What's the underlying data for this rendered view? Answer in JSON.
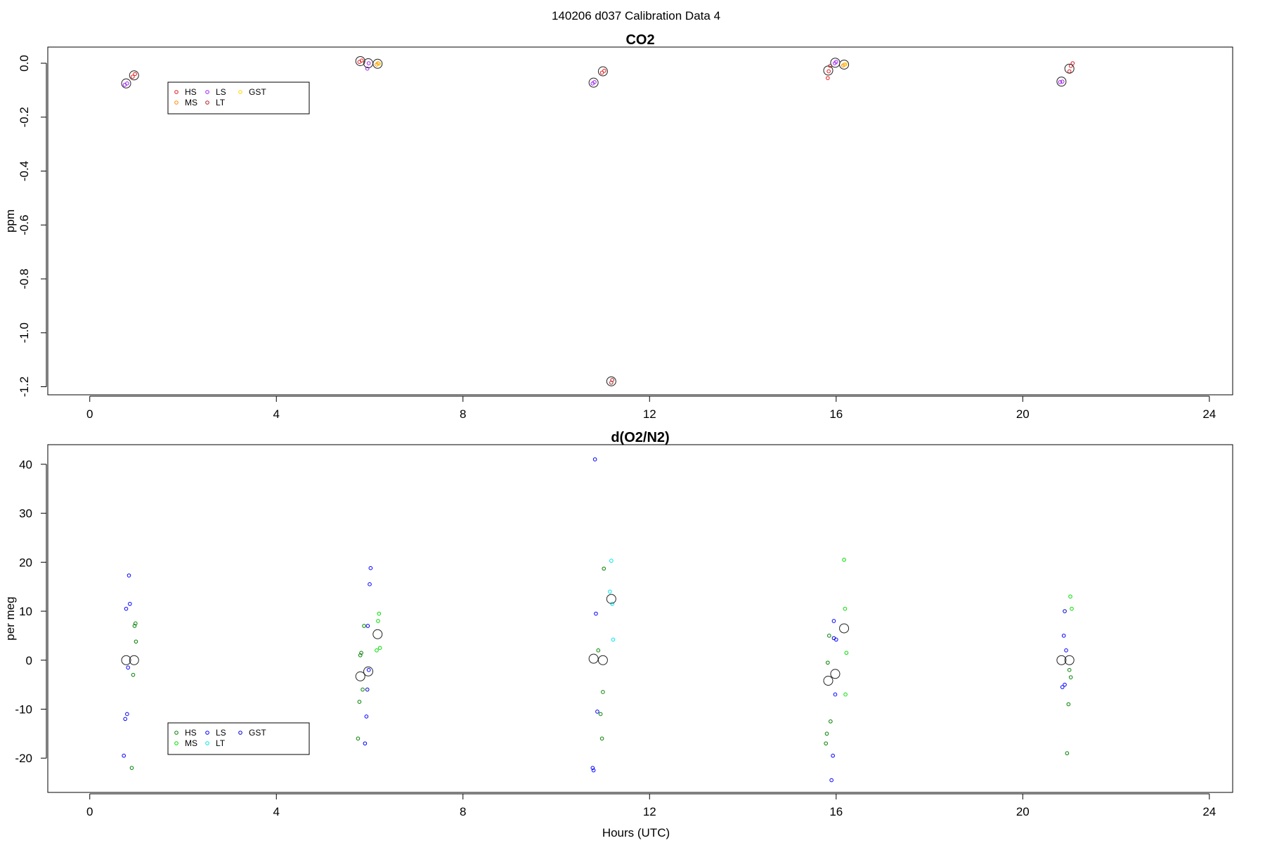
{
  "figure": {
    "title": "140206   d037   Calibration Data 4",
    "xlabel": "Hours (UTC)"
  },
  "chart_data": [
    {
      "type": "scatter",
      "title": "CO2",
      "xlabel": "",
      "ylabel": "ppm",
      "xlim": [
        -0.9,
        24.5
      ],
      "ylim": [
        -1.23,
        0.06
      ],
      "xticks": [
        0,
        4,
        8,
        12,
        16,
        20,
        24
      ],
      "yticks": [
        0.0,
        -0.2,
        -0.4,
        -0.6,
        -0.8,
        -1.0,
        -1.2
      ],
      "ytick_labels": [
        "0.0",
        "-0.2",
        "-0.4",
        "-0.6",
        "-0.8",
        "-1.0",
        "-1.2"
      ],
      "rotate_ytick_labels": true,
      "grid": false,
      "legend_position": "top-left",
      "legend_columns": 3,
      "mean_marker": "open black circle",
      "series": [
        {
          "name": "HS",
          "color": "#e31a1c",
          "x": [
            0.92,
            0.97,
            5.78,
            5.83,
            10.98,
            11.03,
            15.82,
            15.84,
            15.87,
            21.0,
            21.03,
            21.07
          ],
          "y": [
            -0.05,
            -0.04,
            0.005,
            0.01,
            -0.035,
            -0.028,
            -0.055,
            -0.03,
            -0.01,
            -0.03,
            -0.01,
            0.0
          ]
        },
        {
          "name": "MS",
          "color": "#ff8c00",
          "x": [
            6.15,
            6.18,
            16.15,
            16.18
          ],
          "y": [
            -0.005,
            0.0,
            -0.008,
            -0.005
          ]
        },
        {
          "name": "LS",
          "color": "#a020f0",
          "x": [
            0.75,
            0.8,
            5.95,
            5.98,
            10.78,
            10.82,
            15.97,
            16.0,
            20.8,
            20.85
          ],
          "y": [
            -0.08,
            -0.075,
            -0.02,
            0.0,
            -0.075,
            -0.07,
            0.0,
            0.005,
            -0.07,
            -0.068
          ]
        },
        {
          "name": "LT",
          "color": "#b22222",
          "x": [
            11.18,
            11.2
          ],
          "y": [
            -1.185,
            -1.175
          ]
        },
        {
          "name": "GST",
          "color": "#ffd700",
          "x": [
            6.2,
            16.2
          ],
          "y": [
            -0.002,
            -0.004
          ]
        }
      ],
      "means": {
        "x": [
          0.78,
          0.95,
          5.8,
          5.97,
          6.17,
          10.8,
          11.0,
          11.18,
          15.83,
          15.98,
          16.17,
          20.83,
          21.0
        ],
        "y": [
          -0.075,
          -0.045,
          0.008,
          0.0,
          -0.002,
          -0.072,
          -0.03,
          -1.18,
          -0.027,
          0.002,
          -0.005,
          -0.068,
          -0.02
        ]
      }
    },
    {
      "type": "scatter",
      "title": "d(O2/N2)",
      "xlabel": "",
      "ylabel": "per meg",
      "xlim": [
        -0.9,
        24.5
      ],
      "ylim": [
        -27,
        44
      ],
      "xticks": [
        0,
        4,
        8,
        12,
        16,
        20,
        24
      ],
      "yticks": [
        40,
        30,
        20,
        10,
        0,
        -10,
        -20
      ],
      "ytick_labels": [
        "40",
        "30",
        "20",
        "10",
        "0",
        "-10",
        "-20"
      ],
      "rotate_ytick_labels": false,
      "grid": false,
      "legend_position": "bottom-left",
      "legend_columns": 3,
      "mean_marker": "open black circle",
      "series": [
        {
          "name": "HS",
          "color": "#008000",
          "x": [
            0.9,
            0.93,
            0.96,
            0.98,
            0.99,
            5.75,
            5.78,
            5.8,
            5.82,
            5.85,
            5.88,
            10.9,
            10.95,
            10.98,
            11.0,
            11.02,
            15.78,
            15.8,
            15.82,
            15.85,
            15.88,
            20.95,
            20.98,
            21.0,
            21.03
          ],
          "y": [
            -22,
            -3,
            7,
            7.5,
            3.8,
            -16,
            -8.5,
            1,
            1.5,
            -6,
            7,
            2,
            -11,
            -16,
            -6.5,
            18.7,
            -17,
            -15,
            -0.5,
            5,
            -12.5,
            -19,
            -9,
            -2,
            -3.5
          ]
        },
        {
          "name": "MS",
          "color": "#00dd00",
          "x": [
            6.15,
            6.18,
            6.2,
            6.22,
            16.17,
            16.19,
            16.2,
            16.22,
            21.02,
            21.05
          ],
          "y": [
            2,
            8,
            9.5,
            2.5,
            20.5,
            10.5,
            -7,
            1.5,
            13,
            10.5
          ]
        },
        {
          "name": "LS",
          "color": "#0000ff",
          "x": [
            0.73,
            0.76,
            0.78,
            0.8,
            0.82,
            0.84,
            0.86,
            5.9,
            5.93,
            5.96,
            5.98,
            6.0,
            6.02,
            10.78,
            10.8,
            10.83,
            10.85,
            10.88,
            15.9,
            15.93,
            15.95,
            15.98,
            16.0,
            20.85,
            20.88,
            20.9,
            20.93
          ],
          "y": [
            -19.5,
            -12,
            10.5,
            -11,
            -1.5,
            17.3,
            11.5,
            -17,
            -11.5,
            7,
            -2,
            15.5,
            18.8,
            -22,
            -22.5,
            41,
            9.5,
            -10.5,
            -24.5,
            -19.5,
            8,
            -7,
            4.2,
            -5.5,
            5,
            -5,
            2
          ]
        },
        {
          "name": "LT",
          "color": "#00e5ee",
          "x": [
            11.15,
            11.18,
            11.2,
            11.22
          ],
          "y": [
            14,
            20.3,
            11.5,
            4.2
          ]
        },
        {
          "name": "GST",
          "color": "#0000cd",
          "x": [
            5.95,
            15.95,
            20.9
          ],
          "y": [
            -6,
            4.5,
            10
          ]
        }
      ],
      "means": {
        "x": [
          0.78,
          0.95,
          5.8,
          5.97,
          6.17,
          10.8,
          11.0,
          11.18,
          15.83,
          15.98,
          16.17,
          20.83,
          21.0
        ],
        "y": [
          0,
          0,
          -3.3,
          -2.3,
          5.3,
          0.3,
          0,
          12.5,
          -4.2,
          -2.8,
          6.5,
          0,
          0
        ]
      }
    }
  ]
}
